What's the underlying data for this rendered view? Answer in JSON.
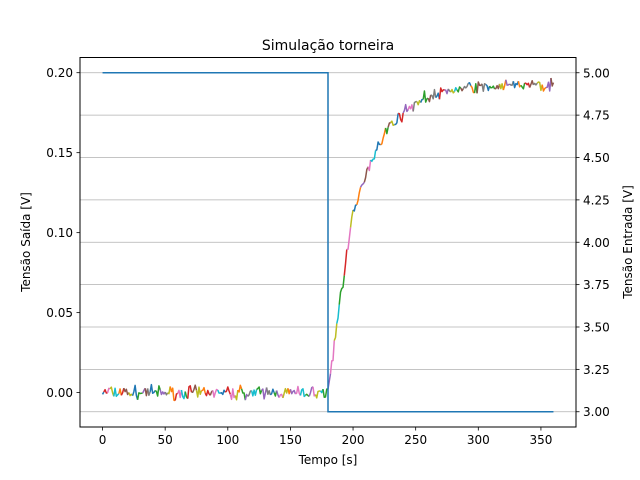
{
  "chart_data": {
    "type": "line",
    "title": "Simulação torneira",
    "xlabel": "Tempo [s]",
    "ylabel_left": "Tensão Saída [V]",
    "ylabel_right": "Tensão Entrada [V]",
    "xlim": [
      -18,
      378
    ],
    "ylim_left": [
      -0.0215,
      0.2095
    ],
    "ylim_right": [
      2.91,
      5.09
    ],
    "x_ticks": [
      "0",
      "50",
      "100",
      "150",
      "200",
      "250",
      "300",
      "350"
    ],
    "y_ticks_left": [
      "0.00",
      "0.05",
      "0.10",
      "0.15",
      "0.20"
    ],
    "y_ticks_right": [
      "3.00",
      "3.25",
      "3.50",
      "3.75",
      "4.00",
      "4.25",
      "4.50",
      "4.75",
      "5.00"
    ],
    "grid": "horizontal lines at right-axis ticks",
    "legend": "none",
    "input_series": {
      "axis": "right",
      "color": "#1f77b4",
      "x": [
        0,
        180,
        180,
        360
      ],
      "y": [
        5.0,
        5.0,
        3.0,
        3.0
      ]
    },
    "output_response": {
      "axis": "left",
      "description_points_x": [
        0,
        180,
        185,
        190,
        195,
        200,
        210,
        220,
        230,
        240,
        250,
        260,
        270,
        280,
        290,
        300,
        320,
        340,
        360
      ],
      "description_points_y": [
        0.0,
        0.0,
        0.03,
        0.06,
        0.087,
        0.11,
        0.137,
        0.155,
        0.167,
        0.175,
        0.181,
        0.185,
        0.187,
        0.189,
        0.19,
        0.191,
        0.192,
        0.192,
        0.192
      ],
      "noise_amplitude": 0.006,
      "colors": [
        "#1f77b4",
        "#ff7f0e",
        "#2ca02c",
        "#d62728",
        "#9467bd",
        "#8c564b",
        "#e377c2",
        "#7f7f7f",
        "#bcbd22",
        "#17becf"
      ]
    }
  }
}
